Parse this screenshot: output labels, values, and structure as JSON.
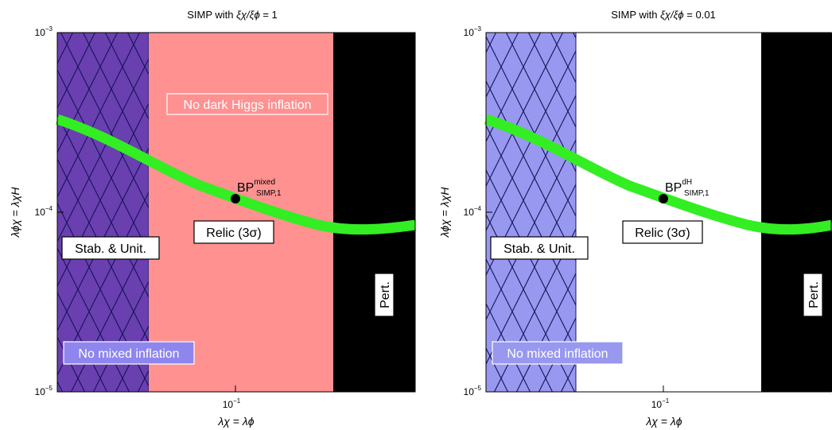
{
  "figure": {
    "panels": [
      {
        "title_main": "SIMP with ",
        "title_ratio": "ξχ/ξϕ",
        "title_value": " = 1",
        "xlabel_lhs": "λχ",
        "xlabel_rhs": "λϕ",
        "ylabel_lhs": "λϕχ",
        "ylabel_rhs": "λχH",
        "benchmark_label": "BP",
        "benchmark_sup": "mixed",
        "benchmark_sub": "SIMP,1",
        "label_no_dark_higgs": "No dark Higgs inflation",
        "label_relic": "Relic (3σ)",
        "label_stab_unit": "Stab. & Unit.",
        "label_pert": "Pert.",
        "label_no_mixed": "No mixed inflation"
      },
      {
        "title_main": "SIMP with ",
        "title_ratio": "ξχ/ξϕ",
        "title_value": " = 0.01",
        "xlabel_lhs": "λχ",
        "xlabel_rhs": "λϕ",
        "ylabel_lhs": "λϕχ",
        "ylabel_rhs": "λχH",
        "benchmark_label": "BP",
        "benchmark_sup": "dH",
        "benchmark_sub": "SIMP,1",
        "label_no_dark_higgs": "",
        "label_relic": "Relic (3σ)",
        "label_stab_unit": "Stab. & Unit.",
        "label_pert": "Pert.",
        "label_no_mixed": "No mixed inflation"
      }
    ]
  },
  "chart_data": [
    {
      "type": "area",
      "title": "SIMP with ξχ/ξϕ = 1",
      "xlabel": "λχ = λϕ",
      "ylabel": "λϕχ = λχH",
      "x_scale": "log",
      "y_scale": "log",
      "xlim": [
        0.0147,
        0.5
      ],
      "ylim": [
        1e-05,
        0.001
      ],
      "x_ticks": [
        {
          "value": 0.1,
          "base": "10",
          "exp": "−1"
        }
      ],
      "y_ticks": [
        {
          "value": 1e-05,
          "base": "10",
          "exp": "−5"
        },
        {
          "value": 0.0001,
          "base": "10",
          "exp": "−4"
        },
        {
          "value": 0.001,
          "base": "10",
          "exp": "−3"
        }
      ],
      "regions": [
        {
          "name": "Stab. & Unit.",
          "x_range": [
            0.0147,
            0.033
          ],
          "color": "#6a3fb0",
          "hatched": true,
          "hatch_color": "#141458"
        },
        {
          "name": "No dark Higgs inflation",
          "x_range": [
            0.033,
            0.235
          ],
          "color": "#ff9191",
          "hatched": false
        },
        {
          "name": "Pert.",
          "x_range": [
            0.235,
            0.5
          ],
          "color": "#000000",
          "hatched": false
        }
      ],
      "relic_band": {
        "name": "Relic (3σ)",
        "color": "#33ee22",
        "x": [
          0.0147,
          0.02,
          0.03,
          0.045,
          0.07,
          0.1,
          0.14,
          0.2,
          0.28,
          0.36,
          0.44,
          0.5
        ],
        "y": [
          0.000335,
          0.000265,
          0.000196,
          0.000155,
          0.000128,
          0.000115,
          0.000102,
          9.1e-05,
          8.3e-05,
          8.15e-05,
          8.25e-05,
          8.4e-05
        ]
      },
      "benchmark": {
        "name": "BP mixed SIMP,1",
        "x": 0.1,
        "y": 0.000115
      },
      "grid": false,
      "legend": "none"
    },
    {
      "type": "area",
      "title": "SIMP with ξχ/ξϕ = 0.01",
      "xlabel": "λχ = λϕ",
      "ylabel": "λϕχ = λχH",
      "x_scale": "log",
      "y_scale": "log",
      "xlim": [
        0.0147,
        0.5
      ],
      "ylim": [
        1e-05,
        0.001
      ],
      "x_ticks": [
        {
          "value": 0.1,
          "base": "10",
          "exp": "−1"
        }
      ],
      "y_ticks": [
        {
          "value": 1e-05,
          "base": "10",
          "exp": "−5"
        },
        {
          "value": 0.0001,
          "base": "10",
          "exp": "−4"
        },
        {
          "value": 0.001,
          "base": "10",
          "exp": "−3"
        }
      ],
      "regions": [
        {
          "name": "Stab. & Unit.",
          "x_range": [
            0.0147,
            0.033
          ],
          "color": "#9898f0",
          "hatched": true,
          "hatch_color": "#141458"
        },
        {
          "name": "Pert.",
          "x_range": [
            0.235,
            0.5
          ],
          "color": "#000000",
          "hatched": false
        }
      ],
      "relic_band": {
        "name": "Relic (3σ)",
        "color": "#33ee22",
        "x": [
          0.0147,
          0.02,
          0.03,
          0.045,
          0.07,
          0.1,
          0.14,
          0.2,
          0.28,
          0.36,
          0.44,
          0.5
        ],
        "y": [
          0.000335,
          0.000265,
          0.000196,
          0.000155,
          0.000128,
          0.000115,
          0.000102,
          9.1e-05,
          8.3e-05,
          8.15e-05,
          8.25e-05,
          8.4e-05
        ]
      },
      "benchmark": {
        "name": "BP dH SIMP,1",
        "x": 0.1,
        "y": 0.000115
      },
      "grid": false,
      "legend": "none"
    }
  ]
}
